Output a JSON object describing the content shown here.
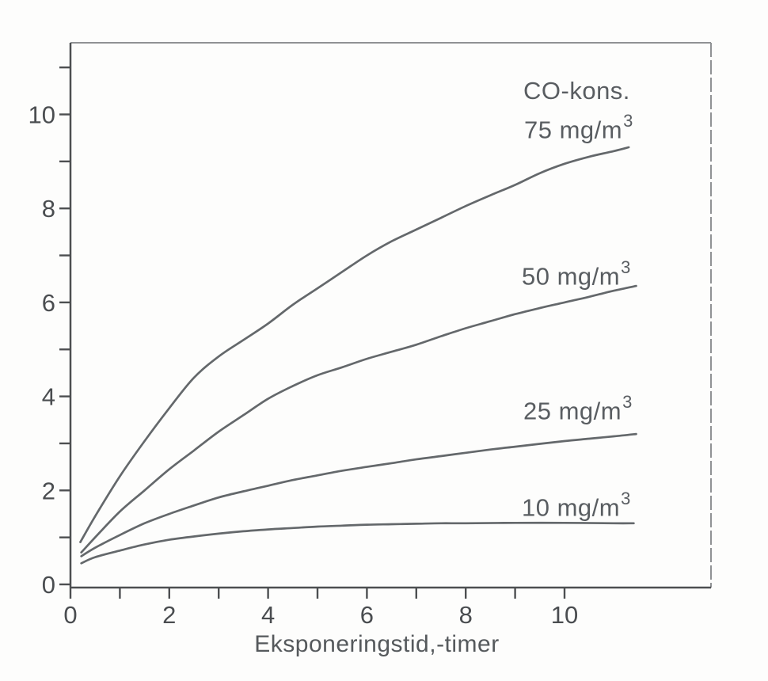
{
  "chart_data": {
    "type": "line",
    "title": "",
    "legend_title": "CO-kons.",
    "legend_position": "right-inside",
    "grid": false,
    "x_axis": {
      "label": "Eksponeringstid,-timer",
      "min": 0,
      "max": 12.95,
      "ticks": [
        0,
        1,
        2,
        3,
        4,
        5,
        6,
        7,
        8,
        9,
        10
      ],
      "labeled_ticks": [
        0,
        2,
        4,
        6,
        8,
        10
      ]
    },
    "y_axis": {
      "label": "",
      "min": 0,
      "max": 11.5,
      "ticks": [
        0,
        1,
        2,
        3,
        4,
        5,
        6,
        7,
        8,
        9,
        10,
        11
      ],
      "labeled_ticks": [
        0,
        2,
        4,
        6,
        8,
        10
      ]
    },
    "series": [
      {
        "id": "75",
        "label": "75 mg/m³",
        "label_base": "75 mg/m",
        "label_exp": "3",
        "points": [
          [
            0.2,
            0.9
          ],
          [
            0.5,
            1.45
          ],
          [
            1,
            2.3
          ],
          [
            1.5,
            3.05
          ],
          [
            2,
            3.75
          ],
          [
            2.5,
            4.4
          ],
          [
            3,
            4.85
          ],
          [
            3.5,
            5.2
          ],
          [
            4,
            5.55
          ],
          [
            4.5,
            5.95
          ],
          [
            5,
            6.3
          ],
          [
            5.5,
            6.65
          ],
          [
            6,
            7.0
          ],
          [
            6.5,
            7.3
          ],
          [
            7,
            7.55
          ],
          [
            7.5,
            7.8
          ],
          [
            8,
            8.05
          ],
          [
            8.5,
            8.28
          ],
          [
            9,
            8.5
          ],
          [
            9.5,
            8.75
          ],
          [
            10,
            8.95
          ],
          [
            10.5,
            9.1
          ],
          [
            11,
            9.22
          ],
          [
            11.3,
            9.3
          ]
        ]
      },
      {
        "id": "50",
        "label": "50 mg/m³",
        "label_base": "50 mg/m",
        "label_exp": "3",
        "points": [
          [
            0.22,
            0.68
          ],
          [
            0.5,
            1.0
          ],
          [
            1,
            1.55
          ],
          [
            1.5,
            2.0
          ],
          [
            2,
            2.45
          ],
          [
            2.5,
            2.85
          ],
          [
            3,
            3.25
          ],
          [
            3.5,
            3.6
          ],
          [
            4,
            3.95
          ],
          [
            4.5,
            4.22
          ],
          [
            5,
            4.45
          ],
          [
            5.5,
            4.62
          ],
          [
            6,
            4.8
          ],
          [
            6.5,
            4.95
          ],
          [
            7,
            5.1
          ],
          [
            7.5,
            5.28
          ],
          [
            8,
            5.45
          ],
          [
            8.5,
            5.6
          ],
          [
            9,
            5.75
          ],
          [
            9.5,
            5.88
          ],
          [
            10,
            6.0
          ],
          [
            10.5,
            6.12
          ],
          [
            11,
            6.25
          ],
          [
            11.45,
            6.35
          ]
        ]
      },
      {
        "id": "25",
        "label": "25 mg/m³",
        "label_base": "25 mg/m",
        "label_exp": "3",
        "points": [
          [
            0.22,
            0.6
          ],
          [
            0.5,
            0.78
          ],
          [
            1,
            1.05
          ],
          [
            1.5,
            1.3
          ],
          [
            2,
            1.5
          ],
          [
            2.5,
            1.68
          ],
          [
            3,
            1.85
          ],
          [
            3.5,
            1.98
          ],
          [
            4,
            2.1
          ],
          [
            4.5,
            2.22
          ],
          [
            5,
            2.32
          ],
          [
            5.5,
            2.42
          ],
          [
            6,
            2.5
          ],
          [
            6.5,
            2.58
          ],
          [
            7,
            2.66
          ],
          [
            7.5,
            2.73
          ],
          [
            8,
            2.8
          ],
          [
            8.5,
            2.87
          ],
          [
            9,
            2.93
          ],
          [
            9.5,
            2.99
          ],
          [
            10,
            3.05
          ],
          [
            10.5,
            3.1
          ],
          [
            11,
            3.15
          ],
          [
            11.45,
            3.2
          ]
        ]
      },
      {
        "id": "10",
        "label": "10 mg/m³",
        "label_base": "10 mg/m",
        "label_exp": "3",
        "points": [
          [
            0.22,
            0.45
          ],
          [
            0.5,
            0.58
          ],
          [
            1,
            0.72
          ],
          [
            1.5,
            0.85
          ],
          [
            2,
            0.95
          ],
          [
            2.5,
            1.02
          ],
          [
            3,
            1.08
          ],
          [
            3.5,
            1.13
          ],
          [
            4,
            1.17
          ],
          [
            4.5,
            1.2
          ],
          [
            5,
            1.23
          ],
          [
            5.5,
            1.25
          ],
          [
            6,
            1.27
          ],
          [
            6.5,
            1.28
          ],
          [
            7,
            1.29
          ],
          [
            7.5,
            1.3
          ],
          [
            8,
            1.3
          ],
          [
            9,
            1.31
          ],
          [
            10,
            1.31
          ],
          [
            11,
            1.3
          ],
          [
            11.4,
            1.3
          ]
        ]
      }
    ],
    "style": {
      "curve_color": "#64686b",
      "axis_color": "#4d4f51",
      "frame_color": "#909294",
      "tick_label_color": "#4a4d50",
      "background": "#fdfdfc"
    }
  }
}
